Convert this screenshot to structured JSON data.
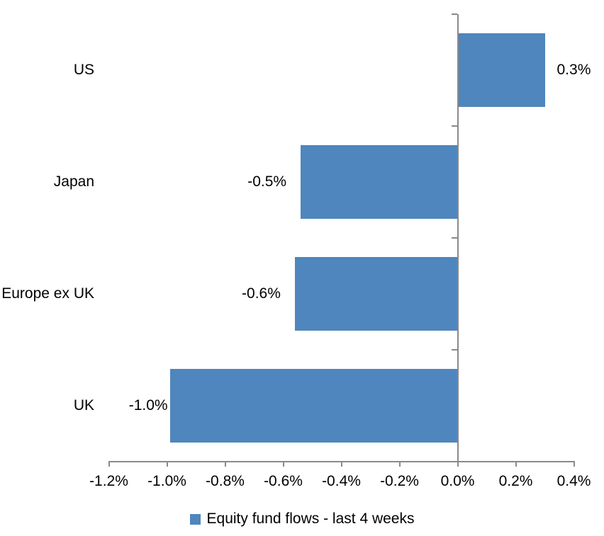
{
  "chart_data": {
    "type": "bar",
    "orientation": "horizontal",
    "title": "",
    "xlabel": "",
    "ylabel": "",
    "categories": [
      "US",
      "Japan",
      "Europe ex UK",
      "UK"
    ],
    "series": [
      {
        "name": "Equity fund flows - last 4 weeks",
        "values": [
          0.3,
          -0.5,
          -0.6,
          -1.0
        ],
        "value_labels": [
          "0.3%",
          "-0.5%",
          "-0.6%",
          "-1.0%"
        ],
        "plotted_values": [
          0.3,
          -0.54,
          -0.56,
          -0.99
        ]
      }
    ],
    "xlim": [
      -1.2,
      0.4
    ],
    "x_tick_values": [
      -1.2,
      -1.0,
      -0.8,
      -0.6,
      -0.4,
      -0.2,
      0.0,
      0.2,
      0.4
    ],
    "x_tick_labels": [
      "-1.2%",
      "-1.0%",
      "-0.8%",
      "-0.6%",
      "-0.4%",
      "-0.2%",
      "0.0%",
      "0.2%",
      "0.4%"
    ],
    "grid": false,
    "legend": {
      "position": "bottom",
      "label": "Equity fund flows - last 4 weeks"
    },
    "colors": {
      "bar": "#4E86BD",
      "axis": "#8A8A8A",
      "text": "#000000",
      "background": "#FFFFFF"
    }
  }
}
